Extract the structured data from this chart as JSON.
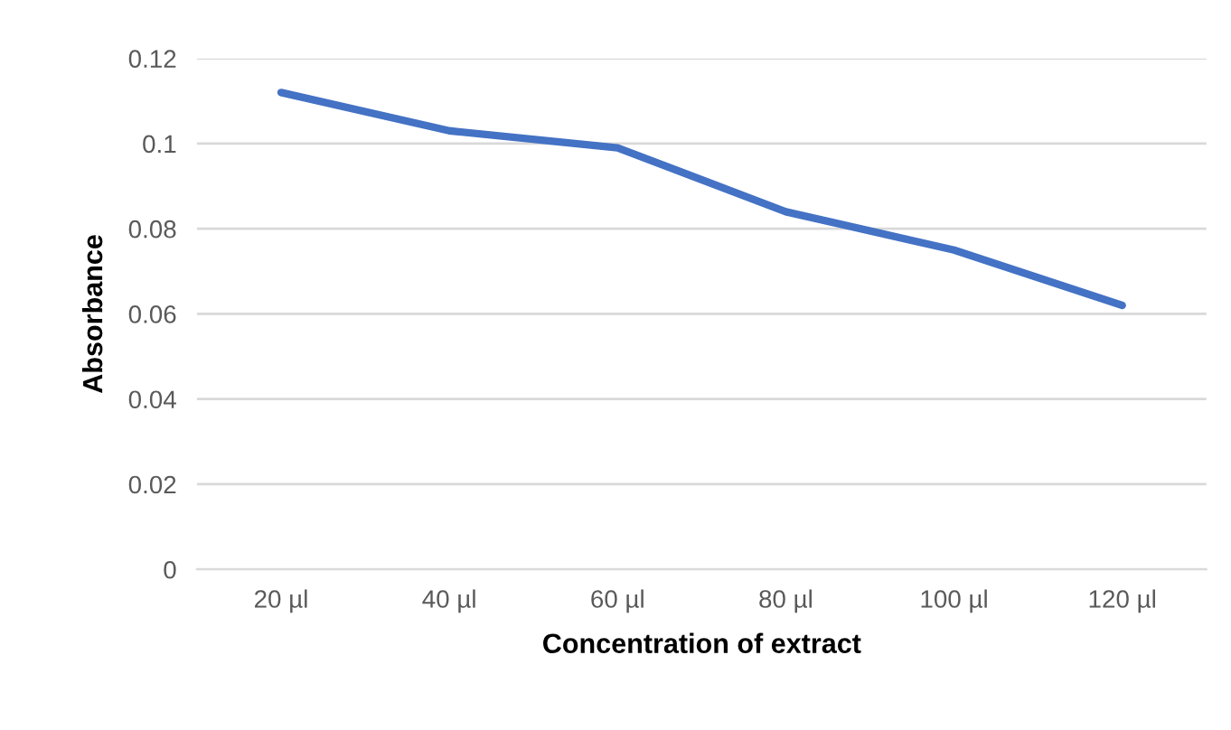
{
  "chart_data": {
    "type": "line",
    "xlabel": "Concentration of extract",
    "ylabel": "Absorbance",
    "categories": [
      "20 µl",
      "40 µl",
      "60 µl",
      "80 µl",
      "100 µl",
      "120 µl"
    ],
    "series": [
      {
        "color": "#4472c4",
        "values": [
          0.112,
          0.103,
          0.099,
          0.084,
          0.075,
          0.062
        ]
      }
    ],
    "ylim": [
      0,
      0.12
    ],
    "yticks": [
      0,
      {
        "value": 0.02,
        "label": "0.02"
      },
      {
        "value": 0.04,
        "label": "0.04"
      },
      {
        "value": 0.06,
        "label": "0.06"
      },
      {
        "value": 0.08,
        "label": "0.08"
      },
      {
        "value": 0.1,
        "label": "0.1"
      },
      {
        "value": 0.12,
        "label": "0.12"
      }
    ],
    "grid": "y",
    "legend": false,
    "marker": "none",
    "line_style": "solid"
  }
}
